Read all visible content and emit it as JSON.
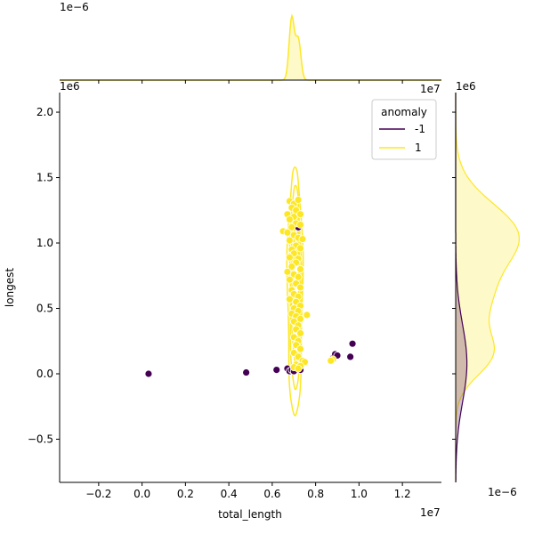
{
  "chart_data": {
    "type": "scatter",
    "xlabel": "total_length",
    "ylabel": "longest",
    "x_scale_label": "1e7",
    "y_scale_label": "1e6",
    "top_marginal_scale_label": "1e−6",
    "right_marginal_scale_label": "1e−6",
    "xlim": [
      -0.38,
      1.38
    ],
    "ylim": [
      -0.83,
      2.15
    ],
    "x_ticks": [
      -0.2,
      0.0,
      0.2,
      0.4,
      0.6,
      0.8,
      1.0,
      1.2
    ],
    "x_tick_labels": [
      "−0.2",
      "0.0",
      "0.2",
      "0.4",
      "0.6",
      "0.8",
      "1.0",
      "1.2"
    ],
    "y_ticks": [
      -0.5,
      0.0,
      0.5,
      1.0,
      1.5,
      2.0
    ],
    "y_tick_labels": [
      "−0.5",
      "0.0",
      "0.5",
      "1.0",
      "1.5",
      "2.0"
    ],
    "legend": {
      "title": "anomaly",
      "placement": "top-right",
      "entries": [
        {
          "label": "-1",
          "color": "#440154"
        },
        {
          "label": "1",
          "color": "#fde725"
        }
      ]
    },
    "series": [
      {
        "name": "-1",
        "color": "#440154",
        "points": [
          [
            0.03,
            0.0
          ],
          [
            0.48,
            0.01
          ],
          [
            0.62,
            0.03
          ],
          [
            0.67,
            0.04
          ],
          [
            0.68,
            0.02
          ],
          [
            0.69,
            0.03
          ],
          [
            0.7,
            0.02
          ],
          [
            0.73,
            0.03
          ],
          [
            0.88,
            0.12
          ],
          [
            0.89,
            0.15
          ],
          [
            0.9,
            0.14
          ],
          [
            0.96,
            0.13
          ],
          [
            0.97,
            0.23
          ],
          [
            0.72,
            1.12
          ]
        ]
      },
      {
        "name": "1",
        "color": "#fde725",
        "points": [
          [
            0.68,
            1.32
          ],
          [
            0.7,
            1.3
          ],
          [
            0.72,
            1.33
          ],
          [
            0.69,
            1.27
          ],
          [
            0.71,
            1.25
          ],
          [
            0.67,
            1.22
          ],
          [
            0.7,
            1.2
          ],
          [
            0.73,
            1.22
          ],
          [
            0.68,
            1.18
          ],
          [
            0.71,
            1.15
          ],
          [
            0.69,
            1.12
          ],
          [
            0.73,
            1.14
          ],
          [
            0.65,
            1.09
          ],
          [
            0.67,
            1.08
          ],
          [
            0.7,
            1.06
          ],
          [
            0.72,
            1.04
          ],
          [
            0.74,
            1.03
          ],
          [
            0.68,
            1.02
          ],
          [
            0.71,
            0.98
          ],
          [
            0.69,
            0.95
          ],
          [
            0.73,
            0.96
          ],
          [
            0.7,
            0.92
          ],
          [
            0.68,
            0.89
          ],
          [
            0.72,
            0.88
          ],
          [
            0.71,
            0.85
          ],
          [
            0.69,
            0.82
          ],
          [
            0.73,
            0.8
          ],
          [
            0.67,
            0.78
          ],
          [
            0.7,
            0.76
          ],
          [
            0.72,
            0.74
          ],
          [
            0.68,
            0.72
          ],
          [
            0.71,
            0.69
          ],
          [
            0.73,
            0.66
          ],
          [
            0.69,
            0.64
          ],
          [
            0.7,
            0.61
          ],
          [
            0.72,
            0.59
          ],
          [
            0.68,
            0.57
          ],
          [
            0.71,
            0.55
          ],
          [
            0.73,
            0.52
          ],
          [
            0.7,
            0.5
          ],
          [
            0.72,
            0.48
          ],
          [
            0.69,
            0.46
          ],
          [
            0.71,
            0.44
          ],
          [
            0.76,
            0.45
          ],
          [
            0.73,
            0.42
          ],
          [
            0.7,
            0.4
          ],
          [
            0.72,
            0.37
          ],
          [
            0.71,
            0.34
          ],
          [
            0.73,
            0.31
          ],
          [
            0.7,
            0.28
          ],
          [
            0.72,
            0.25
          ],
          [
            0.71,
            0.22
          ],
          [
            0.73,
            0.19
          ],
          [
            0.7,
            0.16
          ],
          [
            0.72,
            0.13
          ],
          [
            0.74,
            0.1
          ],
          [
            0.75,
            0.09
          ],
          [
            0.71,
            0.07
          ],
          [
            0.73,
            0.06
          ],
          [
            0.7,
            0.05
          ],
          [
            0.72,
            0.04
          ],
          [
            0.88,
            0.11
          ],
          [
            0.87,
            0.1
          ]
        ]
      }
    ],
    "kde_contour_levels": [
      {
        "xc": 0.705,
        "yc": 0.63,
        "rx": 0.035,
        "ry": 0.95
      },
      {
        "xc": 0.707,
        "yc": 0.66,
        "rx": 0.026,
        "ry": 0.78
      },
      {
        "xc": 0.708,
        "yc": 0.7,
        "rx": 0.019,
        "ry": 0.62
      },
      {
        "xc": 0.71,
        "yc": 0.8,
        "rx": 0.012,
        "ry": 0.4
      },
      {
        "xc": 0.71,
        "yc": 1.05,
        "rx": 0.008,
        "ry": 0.12
      }
    ],
    "top_marginal": {
      "series": "1",
      "color": "#fde725",
      "peaks": [
        {
          "x": 0.69,
          "height": 1.0,
          "width": 0.012
        },
        {
          "x": 0.72,
          "height": 0.65,
          "width": 0.012
        }
      ]
    },
    "right_marginal": {
      "series": [
        {
          "name": "1",
          "color": "#fde725",
          "peaks": [
            {
              "y": 1.05,
              "height": 1.0,
              "width": 0.25
            },
            {
              "y": 0.15,
              "height": 0.55,
              "width": 0.17
            },
            {
              "y": 0.55,
              "height": 0.42,
              "width": 0.2
            }
          ]
        },
        {
          "name": "-1",
          "color": "#440154",
          "peaks": [
            {
              "y": 0.08,
              "height": 0.18,
              "width": 0.3
            }
          ]
        }
      ]
    }
  }
}
